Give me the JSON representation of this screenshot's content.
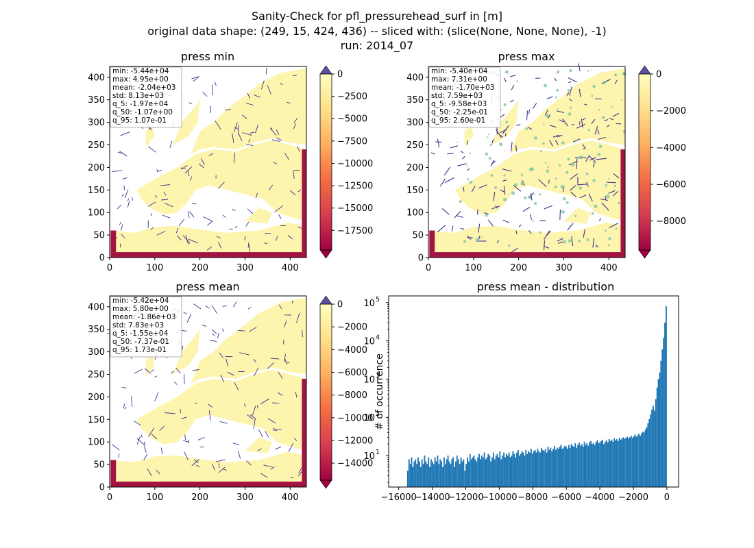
{
  "figure": {
    "title_lines": [
      "Sanity-Check for pfl_pressurehead_surf in [m]",
      "original data shape: (249, 15, 424, 436) -- sliced with: (slice(None, None, None), -1)",
      "run: 2014_07"
    ]
  },
  "colors": {
    "land": "#fdf5ae",
    "rivers": "#3a2e8f",
    "boundary": "#a3133f",
    "hist_bar": "#1f77b4",
    "over_color": "#5e4fa2",
    "colormap_stops": [
      "#9e0142",
      "#d53e4f",
      "#f46d43",
      "#fdae61",
      "#fee08b",
      "#ffffbf"
    ]
  },
  "chart_data": [
    {
      "type": "heatmap",
      "title": "press min",
      "x_ticks": [
        "0",
        "100",
        "200",
        "300",
        "400"
      ],
      "y_ticks": [
        "0",
        "50",
        "100",
        "150",
        "200",
        "250",
        "300",
        "350",
        "400"
      ],
      "xlim": [
        0,
        436
      ],
      "ylim": [
        0,
        424
      ],
      "stats": [
        "min: -5.44e+04",
        "max: 4.95e+00",
        "mean: -2.04e+03",
        "std: 8.13e+03",
        "q_5: -1.97e+04",
        "q_50: -1.07e+00",
        "q_95: 1.07e-01"
      ],
      "colorbar": {
        "range": [
          -19700,
          0
        ],
        "ticks": [
          0,
          -2500,
          -5000,
          -7500,
          -10000,
          -12500,
          -15000,
          -17500
        ],
        "tick_labels": [
          "0",
          "−2500",
          "−5000",
          "−7500",
          "−10000",
          "−12500",
          "−15000",
          "−17500"
        ]
      }
    },
    {
      "type": "heatmap",
      "title": "press max",
      "x_ticks": [
        "0",
        "100",
        "200",
        "300",
        "400"
      ],
      "y_ticks": [
        "0",
        "50",
        "100",
        "150",
        "200",
        "250",
        "300",
        "350",
        "400"
      ],
      "xlim": [
        0,
        436
      ],
      "ylim": [
        0,
        424
      ],
      "stats": [
        "min: -5.40e+04",
        "max: 7.31e+00",
        "mean: -1.70e+03",
        "std: 7.59e+03",
        "q_5: -9.58e+03",
        "q_50: -2.25e-01",
        "q_95: 2.60e-01"
      ],
      "colorbar": {
        "range": [
          -9580,
          0
        ],
        "ticks": [
          0,
          -2000,
          -4000,
          -6000,
          -8000
        ],
        "tick_labels": [
          "0",
          "−2000",
          "−4000",
          "−6000",
          "−8000"
        ]
      }
    },
    {
      "type": "heatmap",
      "title": "press mean",
      "x_ticks": [
        "0",
        "100",
        "200",
        "300",
        "400"
      ],
      "y_ticks": [
        "0",
        "50",
        "100",
        "150",
        "200",
        "250",
        "300",
        "350",
        "400"
      ],
      "xlim": [
        0,
        436
      ],
      "ylim": [
        0,
        424
      ],
      "stats": [
        "min: -5.42e+04",
        "max: 5.80e+00",
        "mean: -1.86e+03",
        "std: 7.83e+03",
        "q_5: -1.55e+04",
        "q_50: -7.37e-01",
        "q_95: 1.73e-01"
      ],
      "colorbar": {
        "range": [
          -15500,
          0
        ],
        "ticks": [
          0,
          -2000,
          -4000,
          -6000,
          -8000,
          -10000,
          -12000,
          -14000
        ],
        "tick_labels": [
          "0",
          "−2000",
          "−4000",
          "−6000",
          "−8000",
          "−10000",
          "−12000",
          "−14000"
        ]
      }
    },
    {
      "type": "bar",
      "subtype": "histogram",
      "title": "press mean - distribution",
      "ylabel": "# of occurrence",
      "y_scale": "log",
      "xlim": [
        -16600,
        700
      ],
      "ylim": [
        1.5,
        150000
      ],
      "x_ticks": [
        -16000,
        -14000,
        -12000,
        -10000,
        -8000,
        -6000,
        -4000,
        -2000,
        0
      ],
      "x_tick_labels": [
        "−16000",
        "−14000",
        "−12000",
        "−10000",
        "−8000",
        "−6000",
        "−4000",
        "−2000",
        "0"
      ],
      "y_ticks": [
        10,
        100,
        1000,
        10000,
        100000
      ],
      "y_tick_bases": [
        "10",
        "10",
        "10",
        "10",
        "10"
      ],
      "y_tick_exps": [
        "1",
        "2",
        "3",
        "4",
        "5"
      ],
      "bins": {
        "start": -15500,
        "end": 0,
        "count": 200
      },
      "counts": [
        4,
        8,
        6,
        9,
        5,
        7,
        8,
        6,
        9,
        7,
        5,
        8,
        6,
        10,
        7,
        6,
        9,
        5,
        8,
        7,
        6,
        9,
        7,
        10,
        6,
        8,
        7,
        5,
        9,
        6,
        8,
        10,
        7,
        6,
        8,
        9,
        5,
        7,
        10,
        8,
        6,
        9,
        7,
        8,
        4,
        6,
        9,
        7,
        11,
        8,
        9,
        10,
        8,
        7,
        9,
        11,
        8,
        10,
        9,
        12,
        8,
        9,
        11,
        10,
        7,
        9,
        12,
        8,
        10,
        11,
        9,
        13,
        8,
        10,
        12,
        9,
        11,
        10,
        12,
        9,
        10,
        13,
        11,
        9,
        12,
        14,
        10,
        11,
        13,
        12,
        10,
        14,
        11,
        13,
        12,
        15,
        11,
        13,
        14,
        12,
        15,
        13,
        12,
        16,
        14,
        13,
        15,
        12,
        17,
        14,
        16,
        13,
        15,
        18,
        14,
        16,
        15,
        17,
        19,
        15,
        16,
        18,
        17,
        15,
        19,
        16,
        20,
        18,
        17,
        21,
        16,
        19,
        22,
        18,
        20,
        17,
        23,
        19,
        21,
        18,
        22,
        24,
        20,
        21,
        19,
        23,
        25,
        21,
        22,
        24,
        26,
        20,
        23,
        25,
        22,
        27,
        24,
        26,
        23,
        28,
        25,
        27,
        24,
        29,
        26,
        28,
        30,
        27,
        29,
        31,
        28,
        30,
        33,
        29,
        32,
        35,
        31,
        34,
        37,
        33,
        38,
        42,
        40,
        48,
        55,
        70,
        90,
        120,
        160,
        200,
        150,
        300,
        600,
        1000,
        1500,
        3000,
        6000,
        12000,
        30000,
        80000
      ]
    }
  ]
}
